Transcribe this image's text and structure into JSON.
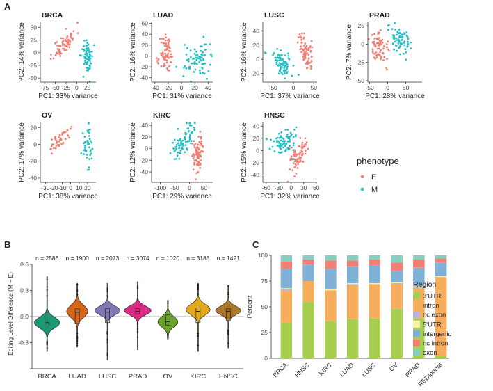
{
  "panel_labels": {
    "a": "A",
    "b": "B",
    "c": "C"
  },
  "colors": {
    "E": "#ef7f74",
    "M": "#22bfc4",
    "axis": "#333333",
    "zero_line": "#aaaaaa",
    "n_text": "#222222"
  },
  "pca": {
    "legend_title": "phenotype",
    "legend_items": [
      {
        "key": "E",
        "label": "E"
      },
      {
        "key": "M",
        "label": "M"
      }
    ]
  },
  "chart_data": [
    {
      "type": "scatter",
      "title": "BRCA",
      "xlabel": "PC1: 33% variance",
      "ylabel": "PC2: 14% variance",
      "xlim": [
        -85,
        45
      ],
      "ylim": [
        -58,
        60
      ],
      "xticks": [
        -75,
        -50,
        -25,
        0,
        25
      ],
      "yticks": [
        -50,
        -25,
        0,
        25,
        50
      ],
      "clusters": [
        {
          "group": "E",
          "n": 70,
          "cx": -28,
          "cy": 18,
          "sx": 13,
          "sy": 10,
          "slope": 0.7,
          "seed": 11
        },
        {
          "group": "M",
          "n": 70,
          "cx": 26,
          "cy": -8,
          "sx": 7,
          "sy": 17,
          "slope": 0.2,
          "seed": 12
        }
      ]
    },
    {
      "type": "scatter",
      "title": "LUAD",
      "xlabel": "PC1: 31% variance",
      "ylabel": "PC2: 16% variance",
      "xlim": [
        -45,
        47
      ],
      "ylim": [
        -48,
        62
      ],
      "xticks": [
        -40,
        -20,
        0,
        20,
        40
      ],
      "yticks": [
        -40,
        -20,
        0,
        20,
        40,
        60
      ],
      "clusters": [
        {
          "group": "E",
          "n": 75,
          "cx": -22,
          "cy": 2,
          "sx": 5,
          "sy": 17,
          "slope": 0,
          "seed": 21
        },
        {
          "group": "M",
          "n": 75,
          "cx": 22,
          "cy": -6,
          "sx": 10,
          "sy": 15,
          "slope": 0.3,
          "seed": 22
        }
      ]
    },
    {
      "type": "scatter",
      "title": "LUSC",
      "xlabel": "PC1: 37% variance",
      "ylabel": "PC2: 16% variance",
      "xlim": [
        -75,
        58
      ],
      "ylim": [
        -32,
        52
      ],
      "xticks": [
        -50,
        0,
        50
      ],
      "yticks": [
        -20,
        0,
        20,
        40
      ],
      "clusters": [
        {
          "group": "E",
          "n": 70,
          "cx": 30,
          "cy": 10,
          "sx": 9,
          "sy": 11,
          "slope": -0.8,
          "seed": 31
        },
        {
          "group": "M",
          "n": 75,
          "cx": -28,
          "cy": -5,
          "sx": 15,
          "sy": 8,
          "slope": -0.35,
          "seed": 32
        }
      ]
    },
    {
      "type": "scatter",
      "title": "PRAD",
      "xlabel": "PC1: 28% variance",
      "ylabel": "PC2: 7% variance",
      "xlim": [
        -55,
        95
      ],
      "ylim": [
        -52,
        30
      ],
      "xticks": [
        -50,
        0,
        50
      ],
      "yticks": [
        -50,
        -25,
        0,
        25
      ],
      "clusters": [
        {
          "group": "E",
          "n": 70,
          "cx": -20,
          "cy": -5,
          "sx": 14,
          "sy": 10,
          "slope": -0.25,
          "seed": 41
        },
        {
          "group": "M",
          "n": 70,
          "cx": 30,
          "cy": 8,
          "sx": 18,
          "sy": 9,
          "slope": -0.25,
          "seed": 42
        }
      ]
    },
    {
      "type": "scatter",
      "title": "OV",
      "xlabel": "PC1: 38% variance",
      "ylabel": "PC2: 17% variance",
      "xlim": [
        -36,
        30
      ],
      "ylim": [
        -45,
        26
      ],
      "xticks": [
        -30,
        -20,
        -10,
        0,
        10,
        20
      ],
      "yticks": [
        -40,
        -20,
        0,
        20
      ],
      "clusters": [
        {
          "group": "E",
          "n": 45,
          "cx": -14,
          "cy": 4,
          "sx": 8,
          "sy": 5,
          "slope": 0.9,
          "seed": 51
        },
        {
          "group": "M",
          "n": 45,
          "cx": 20,
          "cy": -5,
          "sx": 3,
          "sy": 13,
          "slope": 0.5,
          "seed": 52
        }
      ]
    },
    {
      "type": "scatter",
      "title": "KIRC",
      "xlabel": "PC1: 29% variance",
      "ylabel": "PC2: 12% variance",
      "xlim": [
        -130,
        80
      ],
      "ylim": [
        -58,
        45
      ],
      "xticks": [
        -100,
        -50,
        0,
        50
      ],
      "yticks": [
        -40,
        -20,
        0,
        20,
        40
      ],
      "clusters": [
        {
          "group": "E",
          "n": 80,
          "cx": 28,
          "cy": -8,
          "sx": 10,
          "sy": 18,
          "slope": 0.4,
          "seed": 61
        },
        {
          "group": "M",
          "n": 75,
          "cx": -22,
          "cy": 12,
          "sx": 18,
          "sy": 10,
          "slope": 0.5,
          "seed": 62
        }
      ]
    },
    {
      "type": "scatter",
      "title": "HNSC",
      "xlabel": "PC1: 32% variance",
      "ylabel": "PC2: 15% variance",
      "xlim": [
        -68,
        62
      ],
      "ylim": [
        -52,
        46
      ],
      "xticks": [
        -60,
        -30,
        0,
        30,
        60
      ],
      "yticks": [
        -40,
        -20,
        0,
        20,
        40
      ],
      "clusters": [
        {
          "group": "E",
          "n": 80,
          "cx": 18,
          "cy": -10,
          "sx": 12,
          "sy": 12,
          "slope": 0.8,
          "seed": 71
        },
        {
          "group": "M",
          "n": 80,
          "cx": -18,
          "cy": 12,
          "sx": 16,
          "sy": 9,
          "slope": 0.15,
          "seed": 72
        }
      ]
    },
    {
      "type": "violin",
      "ylabel": "Editing Level Difference (M – E)",
      "ylim": [
        -0.6,
        0.6
      ],
      "yticks": [
        -0.6,
        -0.3,
        0.0,
        0.3,
        0.6
      ],
      "ytick_labels": [
        "",
        "-0.3",
        "0.0",
        "0.3",
        "0.6"
      ],
      "categories": [
        "BRCA",
        "LUAD",
        "LUSC",
        "PRAD",
        "OV",
        "KIRC",
        "HNSC"
      ],
      "n_labels": [
        "n = 2586",
        "n = 1900",
        "n = 2073",
        "n = 3074",
        "n = 1020",
        "n = 3185",
        "n = 1421"
      ],
      "fill_colors": [
        "#1a9a74",
        "#d7661d",
        "#8078b4",
        "#dc2a87",
        "#6aa22a",
        "#e5aa1b",
        "#a8772a"
      ],
      "series": [
        {
          "name": "BRCA",
          "mode": -0.07,
          "spread": 0.06,
          "ymin": -0.4,
          "ymax": 0.46,
          "q1": -0.11,
          "median": -0.07,
          "q3": 0.05,
          "max_width": 0.9
        },
        {
          "name": "LUAD",
          "mode": 0.06,
          "spread": 0.07,
          "ymin": -0.35,
          "ymax": 0.38,
          "q1": -0.08,
          "median": 0.05,
          "q3": 0.09,
          "max_width": 0.75
        },
        {
          "name": "LUSC",
          "mode": 0.07,
          "spread": 0.05,
          "ymin": -0.5,
          "ymax": 0.38,
          "q1": -0.07,
          "median": 0.05,
          "q3": 0.09,
          "max_width": 0.9
        },
        {
          "name": "PRAD",
          "mode": 0.07,
          "spread": 0.05,
          "ymin": -0.38,
          "ymax": 0.4,
          "q1": 0.03,
          "median": 0.06,
          "q3": 0.09,
          "max_width": 0.95
        },
        {
          "name": "OV",
          "mode": -0.06,
          "spread": 0.06,
          "ymin": -0.26,
          "ymax": 0.18,
          "q1": -0.1,
          "median": -0.06,
          "q3": 0.02,
          "max_width": 0.7
        },
        {
          "name": "KIRC",
          "mode": 0.08,
          "spread": 0.06,
          "ymin": -0.4,
          "ymax": 0.38,
          "q1": -0.07,
          "median": 0.06,
          "q3": 0.1,
          "max_width": 0.85
        },
        {
          "name": "HNSC",
          "mode": 0.07,
          "spread": 0.05,
          "ymin": -0.36,
          "ymax": 0.36,
          "q1": -0.05,
          "median": 0.06,
          "q3": 0.09,
          "max_width": 0.9
        }
      ]
    },
    {
      "type": "bar",
      "stacked": true,
      "ylabel": "Percent",
      "ylim": [
        0,
        100
      ],
      "yticks": [
        0,
        25,
        50,
        75,
        100
      ],
      "categories": [
        "BRCA",
        "HNSC",
        "KIRC",
        "LUAD",
        "LUSC",
        "OV",
        "PRAD",
        "REDIportal"
      ],
      "legend_title": "Region",
      "series": [
        {
          "name": "3'UTR",
          "color": "#a7cf4f",
          "values": [
            35,
            55,
            36,
            38,
            39,
            48,
            39,
            2
          ]
        },
        {
          "name": "intron",
          "color": "#f6ad5c",
          "values": [
            31,
            20,
            30,
            33,
            33,
            24,
            29,
            77
          ]
        },
        {
          "name": "nc exon",
          "color": "#bcb4da",
          "values": [
            1,
            0,
            0,
            1,
            0,
            1,
            1,
            0
          ]
        },
        {
          "name": "5'UTR",
          "color": "#f7f2ab",
          "values": [
            1,
            0,
            1,
            1,
            1,
            1,
            1,
            1
          ]
        },
        {
          "name": "intergenic",
          "color": "#7fb0d6",
          "values": [
            19,
            16,
            20,
            16,
            17,
            11,
            18,
            13
          ]
        },
        {
          "name": "nc intron",
          "color": "#f47d74",
          "values": [
            7,
            5,
            8,
            6,
            6,
            8,
            8,
            4
          ]
        },
        {
          "name": "exon",
          "color": "#86cfbe",
          "values": [
            6,
            4,
            5,
            5,
            4,
            7,
            4,
            3
          ]
        }
      ]
    }
  ]
}
